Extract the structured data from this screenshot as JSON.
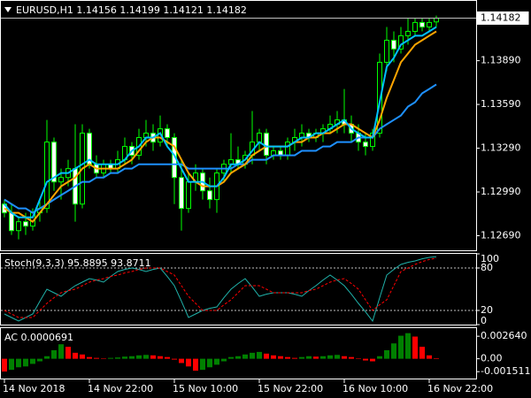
{
  "chart_data": [
    {
      "type": "candlestick",
      "title": "EURUSD,H1  1.14156 1.14199 1.14121 1.14182",
      "categories": [
        "14 Nov 2018",
        null,
        null,
        null,
        null,
        null,
        null,
        null,
        null,
        null,
        null,
        null,
        "14 Nov 22:00",
        null,
        null,
        null,
        null,
        null,
        null,
        null,
        null,
        null,
        null,
        null,
        "15 Nov 10:00",
        null,
        null,
        null,
        null,
        null,
        null,
        null,
        null,
        null,
        null,
        null,
        "15 Nov 22:00",
        null,
        null,
        null,
        null,
        null,
        null,
        null,
        null,
        null,
        null,
        null,
        "16 Nov 10:00",
        null,
        null,
        null,
        null,
        null,
        null,
        null,
        null,
        null,
        null,
        null,
        "16 Nov 22:00",
        null
      ],
      "ohlc": [
        [
          1.12907,
          1.12938,
          1.12816,
          1.12847
        ],
        [
          1.12847,
          1.12907,
          1.12695,
          1.12725
        ],
        [
          1.12725,
          1.12816,
          1.12665,
          1.12786
        ],
        [
          1.12786,
          1.12847,
          1.12695,
          1.12756
        ],
        [
          1.12756,
          1.12877,
          1.12725,
          1.12847
        ],
        [
          1.12847,
          1.12938,
          1.12786,
          1.12877
        ],
        [
          1.12877,
          1.13484,
          1.12847,
          1.13332
        ],
        [
          1.13332,
          1.13363,
          1.12998,
          1.13059
        ],
        [
          1.13059,
          1.1315,
          1.12938,
          1.13089
        ],
        [
          1.13089,
          1.13211,
          1.13029,
          1.1315
        ],
        [
          1.1315,
          1.13454,
          1.12786,
          1.12907
        ],
        [
          1.12907,
          1.13454,
          1.12877,
          1.13393
        ],
        [
          1.13393,
          1.13423,
          1.1315,
          1.1318
        ],
        [
          1.1318,
          1.13241,
          1.13089,
          1.1312
        ],
        [
          1.1312,
          1.13211,
          1.13089,
          1.1318
        ],
        [
          1.1318,
          1.13211,
          1.1312,
          1.1315
        ],
        [
          1.1315,
          1.13272,
          1.1312,
          1.13211
        ],
        [
          1.13211,
          1.13363,
          1.1318,
          1.13302
        ],
        [
          1.13302,
          1.13332,
          1.1318,
          1.13241
        ],
        [
          1.13241,
          1.13423,
          1.13211,
          1.13363
        ],
        [
          1.13363,
          1.13484,
          1.13302,
          1.13393
        ],
        [
          1.13393,
          1.13454,
          1.13272,
          1.13332
        ],
        [
          1.13332,
          1.13514,
          1.13302,
          1.13423
        ],
        [
          1.13423,
          1.13454,
          1.13302,
          1.13363
        ],
        [
          1.13363,
          1.13393,
          1.12907,
          1.13089
        ],
        [
          1.13089,
          1.13211,
          1.12725,
          1.12877
        ],
        [
          1.12877,
          1.1312,
          1.12847,
          1.13059
        ],
        [
          1.13059,
          1.1318,
          1.12998,
          1.1312
        ],
        [
          1.1312,
          1.1315,
          1.12938,
          1.12998
        ],
        [
          1.12998,
          1.13089,
          1.12877,
          1.12938
        ],
        [
          1.12938,
          1.1315,
          1.12847,
          1.1312
        ],
        [
          1.1312,
          1.13211,
          1.13059,
          1.1318
        ],
        [
          1.1318,
          1.13393,
          1.1312,
          1.13211
        ],
        [
          1.13211,
          1.13302,
          1.1315,
          1.1318
        ],
        [
          1.1318,
          1.13272,
          1.1315,
          1.13241
        ],
        [
          1.13241,
          1.13545,
          1.1318,
          1.13332
        ],
        [
          1.13332,
          1.13423,
          1.13272,
          1.13393
        ],
        [
          1.13393,
          1.13423,
          1.1318,
          1.13241
        ],
        [
          1.13241,
          1.13302,
          1.13211,
          1.13272
        ],
        [
          1.13272,
          1.13302,
          1.13211,
          1.13241
        ],
        [
          1.13241,
          1.13363,
          1.13211,
          1.13332
        ],
        [
          1.13332,
          1.13423,
          1.13272,
          1.13363
        ],
        [
          1.13363,
          1.13454,
          1.13302,
          1.13393
        ],
        [
          1.13393,
          1.13423,
          1.13332,
          1.13363
        ],
        [
          1.13363,
          1.13423,
          1.13332,
          1.13393
        ],
        [
          1.13393,
          1.13454,
          1.13332,
          1.13423
        ],
        [
          1.13423,
          1.13514,
          1.13393,
          1.13454
        ],
        [
          1.13454,
          1.13545,
          1.13393,
          1.13484
        ],
        [
          1.13484,
          1.13696,
          1.13393,
          1.13454
        ],
        [
          1.13454,
          1.13514,
          1.13332,
          1.13393
        ],
        [
          1.13393,
          1.13454,
          1.13272,
          1.13332
        ],
        [
          1.13332,
          1.13393,
          1.13241,
          1.13302
        ],
        [
          1.13302,
          1.13423,
          1.13272,
          1.13393
        ],
        [
          1.13393,
          1.13939,
          1.13363,
          1.13879
        ],
        [
          1.13879,
          1.14121,
          1.13818,
          1.1403
        ],
        [
          1.1403,
          1.14091,
          1.13879,
          1.1397
        ],
        [
          1.1397,
          1.14121,
          1.13939,
          1.14061
        ],
        [
          1.14061,
          1.14182,
          1.14,
          1.14091
        ],
        [
          1.14091,
          1.14182,
          1.14061,
          1.14152
        ],
        [
          1.14152,
          1.14182,
          1.14091,
          1.14121
        ],
        [
          1.14121,
          1.14182,
          1.14091,
          1.14152
        ],
        [
          1.14156,
          1.14199,
          1.14121,
          1.14182
        ]
      ],
      "bull_fill": "#000000",
      "bear_fill": "#ffffff",
      "wick_color": "#00ff00",
      "series": [
        {
          "color": "#1e90ff",
          "values": [
            1.12938,
            1.12907,
            1.12877,
            1.12877,
            1.12847,
            1.12877,
            1.12907,
            1.12938,
            1.12968,
            1.12998,
            1.13029,
            1.13059,
            1.13059,
            1.13089,
            1.13089,
            1.1312,
            1.1312,
            1.1315,
            1.1315,
            1.1318,
            1.1318,
            1.1318,
            1.1318,
            1.1318,
            1.1318,
            1.1318,
            1.1315,
            1.1315,
            1.1315,
            1.1315,
            1.1315,
            1.1315,
            1.1315,
            1.1318,
            1.1318,
            1.13211,
            1.13211,
            1.13211,
            1.13241,
            1.13241,
            1.13241,
            1.13241,
            1.13272,
            1.13272,
            1.13272,
            1.13302,
            1.13302,
            1.13332,
            1.13332,
            1.13332,
            1.13363,
            1.13363,
            1.13363,
            1.13423,
            1.13454,
            1.13484,
            1.13514,
            1.13575,
            1.13605,
            1.13666,
            1.13696,
            1.13727
          ]
        },
        {
          "color": "#ffa500",
          "values": [
            1.12877,
            1.12847,
            1.12847,
            1.12816,
            1.12786,
            1.12847,
            1.12907,
            1.12968,
            1.13029,
            1.13059,
            1.13089,
            1.1315,
            1.1318,
            1.1315,
            1.1315,
            1.1315,
            1.1315,
            1.1318,
            1.13211,
            1.13272,
            1.13332,
            1.13363,
            1.13363,
            1.13332,
            1.13302,
            1.13211,
            1.1312,
            1.13059,
            1.13029,
            1.13029,
            1.13029,
            1.13059,
            1.1312,
            1.1315,
            1.1318,
            1.13241,
            1.13272,
            1.13302,
            1.13302,
            1.13302,
            1.13302,
            1.13332,
            1.13332,
            1.13363,
            1.13363,
            1.13393,
            1.13393,
            1.13423,
            1.13454,
            1.13454,
            1.13423,
            1.13393,
            1.13363,
            1.13484,
            1.13636,
            1.13757,
            1.13879,
            1.13939,
            1.14,
            1.1403,
            1.14061,
            1.14091
          ]
        },
        {
          "color": "#00bfff",
          "values": [
            1.12907,
            1.12847,
            1.12816,
            1.12816,
            1.12816,
            1.12938,
            1.13059,
            1.13089,
            1.1312,
            1.1312,
            1.1315,
            1.1318,
            1.13211,
            1.1318,
            1.1318,
            1.1318,
            1.1318,
            1.13211,
            1.13272,
            1.13302,
            1.13363,
            1.13363,
            1.13393,
            1.13302,
            1.13241,
            1.1315,
            1.13059,
            1.13059,
            1.13059,
            1.13029,
            1.13029,
            1.13089,
            1.1318,
            1.1318,
            1.13211,
            1.13272,
            1.13332,
            1.13302,
            1.13302,
            1.13302,
            1.13302,
            1.13332,
            1.13363,
            1.13363,
            1.13393,
            1.13393,
            1.13423,
            1.13454,
            1.13484,
            1.13423,
            1.13393,
            1.13363,
            1.13363,
            1.13605,
            1.13848,
            1.13909,
            1.14,
            1.1403,
            1.14061,
            1.14061,
            1.14091,
            1.14121
          ]
        }
      ],
      "current": {
        "value": 1.14182,
        "label": "1.14182"
      },
      "ylim": [
        1.1259,
        1.143
      ],
      "yticks": [
        {
          "value": 1.1389,
          "label": "1.13890"
        },
        {
          "value": 1.1359,
          "label": "1.13590"
        },
        {
          "value": 1.1329,
          "label": "1.13290"
        },
        {
          "value": 1.1299,
          "label": "1.12990"
        },
        {
          "value": 1.1269,
          "label": "1.12690"
        }
      ]
    },
    {
      "type": "line",
      "title": "Stoch(9,3,3) 95.8895 93.8711",
      "series": [
        {
          "color": "#20b2aa",
          "dash": false,
          "values": [
            15,
            10,
            5,
            10,
            15,
            33,
            50,
            45,
            40,
            48,
            55,
            60,
            65,
            63,
            60,
            68,
            75,
            78,
            80,
            78,
            75,
            78,
            80,
            68,
            55,
            33,
            10,
            15,
            20,
            23,
            25,
            38,
            50,
            58,
            65,
            53,
            40,
            43,
            45,
            45,
            45,
            43,
            40,
            48,
            55,
            63,
            70,
            63,
            55,
            43,
            30,
            18,
            5,
            38,
            70,
            78,
            85,
            88,
            90,
            93,
            95,
            95.8895
          ]
        },
        {
          "color": "#ff0000",
          "dash": true,
          "values": [
            20,
            15,
            10,
            10,
            10,
            20,
            30,
            38,
            45,
            48,
            50,
            55,
            60,
            63,
            65,
            68,
            70,
            73,
            75,
            78,
            80,
            80,
            80,
            75,
            70,
            55,
            40,
            30,
            20,
            20,
            20,
            28,
            35,
            45,
            55,
            55,
            55,
            50,
            45,
            45,
            45,
            45,
            45,
            48,
            50,
            55,
            60,
            63,
            65,
            58,
            50,
            35,
            20,
            28,
            35,
            55,
            75,
            80,
            85,
            89,
            92,
            93.8711
          ]
        }
      ],
      "levels": [
        20,
        80
      ],
      "ylim": [
        0,
        100
      ],
      "yticks": [
        100,
        80,
        20,
        0
      ]
    },
    {
      "type": "bar",
      "title": "AC 0.0000691",
      "values": [
        -0.0015,
        -0.0013,
        -0.001,
        -0.0009,
        -0.0006,
        -0.0003,
        0.0003,
        0.001,
        0.0017,
        0.0014,
        0.0007,
        0.0005,
        0.0002,
        0.0001,
        5e-05,
        0.0001,
        0.00015,
        0.00025,
        0.0003,
        0.0004,
        0.00045,
        0.0004,
        0.0003,
        0.0002,
        -0.0001,
        -0.0005,
        -0.0009,
        -0.0014,
        -0.0013,
        -0.001,
        -0.0007,
        -0.0003,
        0.0002,
        0.0003,
        0.0005,
        0.0007,
        0.0008,
        0.0006,
        0.0004,
        0.0003,
        0.0002,
        0.0001,
        0.0002,
        0.0003,
        0.00025,
        0.0003,
        0.0004,
        0.00045,
        0.0003,
        0.0002,
        5e-05,
        -0.0002,
        -0.0003,
        0.0003,
        0.001,
        0.0018,
        0.0027,
        0.003,
        0.0026,
        0.0014,
        0.0004,
        6.91e-05
      ],
      "up_color": "#008000",
      "down_color": "#ff0000",
      "ylim": [
        -0.00232,
        0.00359
      ],
      "yticks": [
        {
          "value": 0.00264,
          "label": "0.002640"
        },
        {
          "value": 0,
          "label": "0.00"
        },
        {
          "value": -0.001511,
          "label": "-0.001511"
        }
      ]
    }
  ]
}
